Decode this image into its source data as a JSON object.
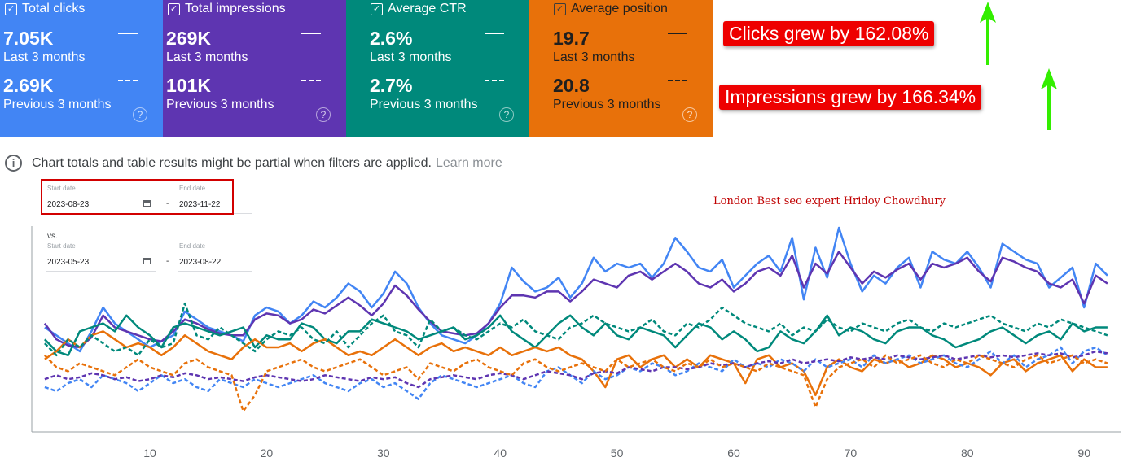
{
  "cards": [
    {
      "key": "clicks",
      "title": "Total clicks",
      "current_value": "7.05K",
      "current_label": "Last 3 months",
      "previous_value": "2.69K",
      "previous_label": "Previous 3 months",
      "color": "#4285f4",
      "checked": true
    },
    {
      "key": "impressions",
      "title": "Total impressions",
      "current_value": "269K",
      "current_label": "Last 3 months",
      "previous_value": "101K",
      "previous_label": "Previous 3 months",
      "color": "#5e35b1",
      "checked": true
    },
    {
      "key": "ctr",
      "title": "Average CTR",
      "current_value": "2.6%",
      "current_label": "Last 3 months",
      "previous_value": "2.7%",
      "previous_label": "Previous 3 months",
      "color": "#00897b",
      "checked": true
    },
    {
      "key": "position",
      "title": "Average position",
      "current_value": "19.7",
      "current_label": "Last 3 months",
      "previous_value": "20.8",
      "previous_label": "Previous 3 months",
      "color": "#e8710a",
      "checked": true
    }
  ],
  "annotations": {
    "clicks_growth": "Clicks grew by 162.08%",
    "impressions_growth": "Impressions grew by 166.34%",
    "arrow_color": "#33ee00",
    "badge_color": "#ee0000"
  },
  "notice": {
    "text": "Chart totals and table results might be partial when filters are applied.",
    "link": "Learn more"
  },
  "date_range": {
    "start_label": "Start date",
    "start_value": "2023-08-23",
    "end_label": "End date",
    "end_value": "2023-11-22",
    "separator": "-"
  },
  "compare_range": {
    "vs_label": "vs.",
    "start_label": "Start date",
    "start_value": "2023-05-23",
    "end_label": "End date",
    "end_value": "2023-08-22",
    "separator": "-"
  },
  "watermark": "London Best seo expert Hridoy Chowdhury",
  "chart_data": {
    "type": "line",
    "x_ticks": [
      10,
      20,
      30,
      40,
      50,
      60,
      70,
      80,
      90
    ],
    "x_range": [
      1,
      92
    ],
    "y_range": [
      0,
      100
    ],
    "grid": false,
    "series": [
      {
        "name": "Total clicks",
        "period": "Last 3 months",
        "style": "solid",
        "color": "#4285f4",
        "values": [
          50,
          46,
          42,
          38,
          48,
          60,
          52,
          48,
          44,
          40,
          43,
          46,
          58,
          54,
          50,
          48,
          46,
          43,
          56,
          60,
          58,
          52,
          56,
          63,
          60,
          65,
          72,
          68,
          60,
          67,
          78,
          72,
          60,
          52,
          46,
          44,
          42,
          46,
          52,
          62,
          80,
          73,
          68,
          70,
          75,
          65,
          72,
          85,
          78,
          82,
          80,
          82,
          75,
          82,
          95,
          88,
          80,
          78,
          84,
          70,
          76,
          82,
          86,
          78,
          95,
          64,
          90,
          75,
          100,
          82,
          68,
          76,
          72,
          80,
          85,
          70,
          88,
          84,
          82,
          88,
          80,
          70,
          92,
          88,
          84,
          82,
          70,
          75,
          80,
          60,
          82,
          76
        ]
      },
      {
        "name": "Total impressions",
        "period": "Last 3 months",
        "style": "solid",
        "color": "#5e35b1",
        "values": [
          52,
          44,
          41,
          40,
          45,
          56,
          50,
          48,
          46,
          44,
          43,
          48,
          54,
          52,
          49,
          47,
          46,
          46,
          54,
          57,
          56,
          52,
          54,
          59,
          57,
          61,
          65,
          61,
          56,
          62,
          71,
          66,
          59,
          53,
          48,
          47,
          46,
          47,
          52,
          60,
          66,
          66,
          65,
          68,
          68,
          63,
          68,
          74,
          72,
          70,
          76,
          78,
          74,
          78,
          82,
          78,
          72,
          70,
          74,
          68,
          72,
          78,
          80,
          76,
          86,
          70,
          82,
          77,
          88,
          80,
          72,
          78,
          75,
          79,
          82,
          74,
          82,
          80,
          82,
          85,
          78,
          73,
          85,
          83,
          80,
          78,
          72,
          70,
          74,
          62,
          76,
          72
        ]
      },
      {
        "name": "Average CTR",
        "period": "Last 3 months",
        "style": "solid",
        "color": "#00897b",
        "values": [
          44,
          38,
          36,
          48,
          50,
          52,
          48,
          56,
          50,
          46,
          40,
          50,
          52,
          50,
          48,
          46,
          48,
          50,
          40,
          46,
          44,
          44,
          52,
          50,
          44,
          42,
          48,
          48,
          54,
          52,
          50,
          48,
          44,
          46,
          48,
          50,
          44,
          46,
          50,
          56,
          48,
          44,
          40,
          46,
          52,
          56,
          50,
          46,
          52,
          46,
          44,
          50,
          48,
          46,
          40,
          46,
          52,
          50,
          44,
          48,
          44,
          38,
          40,
          48,
          44,
          42,
          48,
          56,
          46,
          50,
          48,
          44,
          42,
          48,
          50,
          50,
          46,
          44,
          40,
          42,
          44,
          48,
          50,
          46,
          42,
          46,
          48,
          44,
          52,
          48,
          50,
          50
        ]
      },
      {
        "name": "Average position",
        "period": "Last 3 months",
        "style": "solid",
        "color": "#e8710a",
        "values": [
          34,
          38,
          44,
          40,
          46,
          48,
          44,
          40,
          42,
          40,
          36,
          40,
          46,
          42,
          38,
          36,
          34,
          40,
          44,
          40,
          40,
          42,
          38,
          42,
          44,
          40,
          36,
          38,
          36,
          40,
          44,
          40,
          36,
          40,
          42,
          38,
          40,
          38,
          36,
          40,
          36,
          38,
          40,
          38,
          40,
          36,
          34,
          28,
          20,
          34,
          36,
          30,
          34,
          36,
          30,
          34,
          30,
          36,
          34,
          32,
          22,
          34,
          36,
          30,
          32,
          28,
          16,
          30,
          34,
          30,
          28,
          34,
          32,
          34,
          30,
          32,
          36,
          34,
          30,
          32,
          30,
          26,
          32,
          34,
          28,
          32,
          34,
          36,
          28,
          34,
          30,
          30
        ]
      },
      {
        "name": "Total clicks",
        "period": "Previous 3 months",
        "style": "dashed",
        "color": "#4285f4",
        "values": [
          20,
          18,
          22,
          24,
          20,
          26,
          24,
          22,
          18,
          22,
          26,
          22,
          24,
          20,
          18,
          24,
          22,
          20,
          24,
          22,
          20,
          22,
          24,
          26,
          22,
          20,
          18,
          22,
          24,
          20,
          22,
          18,
          14,
          22,
          26,
          24,
          22,
          20,
          22,
          24,
          26,
          22,
          20,
          28,
          30,
          26,
          22,
          28,
          24,
          26,
          30,
          28,
          32,
          30,
          26,
          28,
          32,
          30,
          28,
          34,
          30,
          32,
          30,
          34,
          32,
          28,
          34,
          30,
          32,
          34,
          30,
          36,
          32,
          34,
          36,
          32,
          34,
          36,
          32,
          30,
          34,
          38,
          32,
          36,
          30,
          34,
          36,
          40,
          32,
          38,
          40,
          36
        ]
      },
      {
        "name": "Total impressions",
        "period": "Previous 3 months",
        "style": "dashed",
        "color": "#5e35b1",
        "values": [
          24,
          26,
          24,
          25,
          27,
          26,
          24,
          25,
          23,
          24,
          26,
          25,
          27,
          26,
          24,
          25,
          24,
          23,
          25,
          26,
          25,
          24,
          23,
          24,
          26,
          25,
          24,
          23,
          25,
          24,
          25,
          22,
          20,
          24,
          25,
          26,
          25,
          24,
          26,
          27,
          26,
          24,
          26,
          28,
          27,
          26,
          24,
          27,
          28,
          27,
          30,
          29,
          28,
          30,
          30,
          29,
          30,
          32,
          31,
          32,
          30,
          32,
          33,
          32,
          34,
          32,
          33,
          34,
          33,
          35,
          34,
          35,
          34,
          36,
          35,
          34,
          35,
          36,
          34,
          35,
          36,
          35,
          36,
          35,
          36,
          37,
          36,
          37,
          35,
          36,
          38,
          37
        ]
      },
      {
        "name": "Average CTR",
        "period": "Previous 3 months",
        "style": "dashed",
        "color": "#00897b",
        "values": [
          42,
          36,
          44,
          40,
          46,
          42,
          38,
          40,
          36,
          44,
          40,
          42,
          62,
          46,
          44,
          50,
          46,
          42,
          38,
          44,
          48,
          46,
          50,
          44,
          42,
          48,
          40,
          46,
          52,
          56,
          48,
          46,
          40,
          54,
          48,
          50,
          46,
          44,
          48,
          52,
          50,
          54,
          48,
          46,
          44,
          50,
          52,
          56,
          52,
          50,
          48,
          50,
          54,
          48,
          46,
          52,
          50,
          54,
          60,
          56,
          52,
          50,
          48,
          52,
          46,
          50,
          48,
          54,
          50,
          48,
          52,
          50,
          48,
          52,
          54,
          50,
          48,
          52,
          50,
          52,
          54,
          56,
          52,
          50,
          48,
          52,
          50,
          54,
          52,
          50,
          48,
          46
        ]
      },
      {
        "name": "Average position",
        "period": "Previous 3 months",
        "style": "dashed",
        "color": "#e8710a",
        "values": [
          36,
          30,
          28,
          32,
          30,
          28,
          26,
          30,
          34,
          30,
          28,
          26,
          32,
          34,
          30,
          28,
          26,
          8,
          16,
          28,
          30,
          32,
          34,
          30,
          28,
          30,
          32,
          34,
          30,
          26,
          28,
          30,
          24,
          32,
          30,
          28,
          32,
          34,
          30,
          28,
          26,
          32,
          34,
          30,
          28,
          30,
          32,
          30,
          28,
          34,
          30,
          32,
          34,
          30,
          28,
          32,
          30,
          34,
          30,
          32,
          30,
          28,
          32,
          30,
          28,
          26,
          10,
          24,
          30,
          32,
          34,
          30,
          36,
          32,
          34,
          36,
          32,
          30,
          34,
          32,
          36,
          34,
          32,
          30,
          34,
          36,
          32,
          34,
          36,
          32,
          34,
          32
        ]
      }
    ]
  }
}
